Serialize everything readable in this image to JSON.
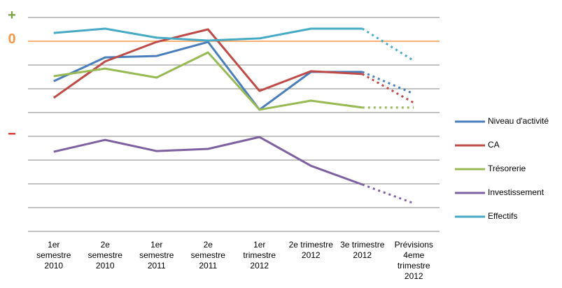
{
  "chart_data": {
    "type": "line",
    "categories": [
      "1er\nsemestre\n2010",
      "2e\nsemestre\n2010",
      "1er\nsemestre\n2011",
      "2e\nsemestre\n2011",
      "1er\ntrimestre\n2012",
      "2e trimestre\n2012",
      "3e trimestre\n2012",
      "Prévisions\n4eme\ntrimestre\n2012"
    ],
    "series": [
      {
        "name": "Niveau d'activité",
        "color": "#4a7ebb",
        "values": [
          -1.68,
          -0.68,
          -0.62,
          -0.03,
          -2.88,
          -1.29,
          -1.29,
          -2.21
        ]
      },
      {
        "name": "CA",
        "color": "#be4b48",
        "values": [
          -2.38,
          -0.85,
          -0.03,
          0.5,
          -2.09,
          -1.26,
          -1.38,
          -2.59
        ]
      },
      {
        "name": "Trésorerie",
        "color": "#98b954",
        "values": [
          -1.47,
          -1.15,
          -1.53,
          -0.47,
          -2.88,
          -2.5,
          -2.79,
          -2.79
        ]
      },
      {
        "name": "Investissement",
        "color": "#7d60a0",
        "values": [
          -4.65,
          -4.15,
          -4.62,
          -4.53,
          -4.03,
          -5.24,
          -6.03,
          -6.82
        ]
      },
      {
        "name": "Effectifs",
        "color": "#46aac5",
        "values": [
          0.35,
          0.53,
          0.15,
          0.03,
          0.12,
          0.53,
          0.53,
          -0.82
        ]
      }
    ],
    "ylim": [
      -8,
      1
    ],
    "yticks": [
      {
        "value": 1,
        "label": "+"
      },
      {
        "value": 0,
        "label": "0"
      },
      {
        "value": -4,
        "label": "−"
      }
    ],
    "ytick_colors": [
      "#77a03c",
      "#f79646",
      "#e0241c"
    ],
    "grid_lines": [
      1,
      0,
      -1,
      -2,
      -3,
      -4,
      -5,
      -6,
      -7,
      -8
    ],
    "zero_line_color": "#f79646",
    "dotted_from_index": 6,
    "legend": "right"
  }
}
